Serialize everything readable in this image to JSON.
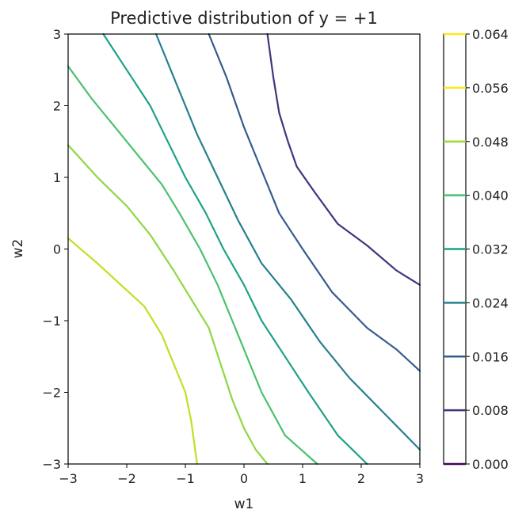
{
  "chart_data": {
    "type": "contour",
    "title": "Predictive distribution of y = +1",
    "xlabel": "w1",
    "ylabel": "w2",
    "xlim": [
      -3,
      3
    ],
    "ylim": [
      -3,
      3
    ],
    "xticks": [
      -3,
      -2,
      -1,
      0,
      1,
      2,
      3
    ],
    "yticks": [
      -3,
      -2,
      -1,
      0,
      1,
      2,
      3
    ],
    "xtick_labels": [
      "−3",
      "−2",
      "−1",
      "0",
      "1",
      "2",
      "3"
    ],
    "ytick_labels": [
      "−3",
      "−2",
      "−1",
      "0",
      "1",
      "2",
      "3"
    ],
    "grid": false,
    "colormap": "viridis",
    "colorbar": {
      "levels": [
        0.0,
        0.008,
        0.016,
        0.024,
        0.032,
        0.04,
        0.048,
        0.056,
        0.064
      ],
      "labels": [
        "0.000",
        "0.008",
        "0.016",
        "0.024",
        "0.032",
        "0.040",
        "0.048",
        "0.056",
        "0.064"
      ],
      "colors": [
        "#440154",
        "#46327e",
        "#365c8d",
        "#277f8e",
        "#1fa187",
        "#4ac16d",
        "#a0da39",
        "#fde725",
        "#fde725"
      ]
    },
    "contours": [
      {
        "level": 0.008,
        "color": "#46327e",
        "points": [
          [
            0.4,
            3.0
          ],
          [
            0.5,
            2.4
          ],
          [
            0.6,
            1.9
          ],
          [
            0.75,
            1.5
          ],
          [
            0.9,
            1.15
          ],
          [
            1.2,
            0.8
          ],
          [
            1.6,
            0.35
          ],
          [
            2.1,
            0.05
          ],
          [
            2.6,
            -0.3
          ],
          [
            3.0,
            -0.5
          ]
        ]
      },
      {
        "level": 0.016,
        "color": "#365c8d",
        "points": [
          [
            -0.6,
            3.0
          ],
          [
            -0.3,
            2.4
          ],
          [
            0.0,
            1.7
          ],
          [
            0.3,
            1.1
          ],
          [
            0.6,
            0.5
          ],
          [
            1.0,
            0.0
          ],
          [
            1.5,
            -0.6
          ],
          [
            2.1,
            -1.1
          ],
          [
            2.6,
            -1.4
          ],
          [
            3.0,
            -1.7
          ]
        ]
      },
      {
        "level": 0.024,
        "color": "#277f8e",
        "points": [
          [
            -1.5,
            3.0
          ],
          [
            -1.1,
            2.2
          ],
          [
            -0.8,
            1.6
          ],
          [
            -0.45,
            1.0
          ],
          [
            -0.1,
            0.4
          ],
          [
            0.3,
            -0.2
          ],
          [
            0.8,
            -0.7
          ],
          [
            1.3,
            -1.3
          ],
          [
            1.8,
            -1.8
          ],
          [
            2.4,
            -2.3
          ],
          [
            3.0,
            -2.8
          ]
        ]
      },
      {
        "level": 0.032,
        "color": "#1fa187",
        "points": [
          [
            -2.4,
            3.0
          ],
          [
            -2.0,
            2.5
          ],
          [
            -1.6,
            2.0
          ],
          [
            -1.3,
            1.5
          ],
          [
            -1.0,
            1.0
          ],
          [
            -0.65,
            0.5
          ],
          [
            -0.35,
            0.0
          ],
          [
            0.0,
            -0.5
          ],
          [
            0.3,
            -1.0
          ],
          [
            0.7,
            -1.5
          ],
          [
            1.1,
            -2.0
          ],
          [
            1.6,
            -2.6
          ],
          [
            2.1,
            -3.0
          ]
        ]
      },
      {
        "level": 0.04,
        "color": "#4ac16d",
        "points": [
          [
            -3.0,
            2.55
          ],
          [
            -2.6,
            2.1
          ],
          [
            -2.2,
            1.7
          ],
          [
            -1.8,
            1.3
          ],
          [
            -1.4,
            0.9
          ],
          [
            -1.1,
            0.5
          ],
          [
            -0.75,
            0.0
          ],
          [
            -0.45,
            -0.5
          ],
          [
            -0.2,
            -1.0
          ],
          [
            0.05,
            -1.5
          ],
          [
            0.3,
            -2.0
          ],
          [
            0.7,
            -2.6
          ],
          [
            1.25,
            -3.0
          ]
        ]
      },
      {
        "level": 0.048,
        "color": "#8fd744",
        "points": [
          [
            -3.0,
            1.45
          ],
          [
            -2.5,
            1.0
          ],
          [
            -2.0,
            0.6
          ],
          [
            -1.6,
            0.2
          ],
          [
            -1.2,
            -0.3
          ],
          [
            -0.9,
            -0.7
          ],
          [
            -0.6,
            -1.1
          ],
          [
            -0.4,
            -1.6
          ],
          [
            -0.2,
            -2.1
          ],
          [
            0.0,
            -2.5
          ],
          [
            0.2,
            -2.8
          ],
          [
            0.4,
            -3.0
          ]
        ]
      },
      {
        "level": 0.056,
        "color": "#c2df23",
        "points": [
          [
            -3.0,
            0.15
          ],
          [
            -2.5,
            -0.2
          ],
          [
            -2.1,
            -0.5
          ],
          [
            -1.7,
            -0.8
          ],
          [
            -1.4,
            -1.2
          ],
          [
            -1.2,
            -1.6
          ],
          [
            -1.0,
            -2.0
          ],
          [
            -0.9,
            -2.4
          ],
          [
            -0.85,
            -2.7
          ],
          [
            -0.8,
            -3.0
          ]
        ]
      }
    ]
  }
}
